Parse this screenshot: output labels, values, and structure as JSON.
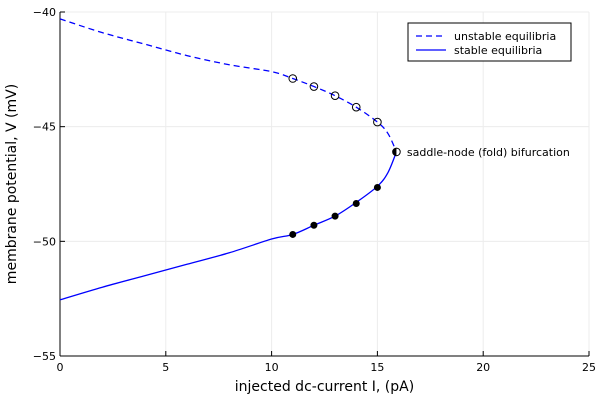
{
  "chart_data": {
    "type": "line",
    "title": "",
    "xlabel": "injected dc-current I, (pA)",
    "ylabel": "membrane potential, V (mV)",
    "xlim": [
      0,
      25
    ],
    "ylim": [
      -55,
      -40
    ],
    "x_ticks": [
      0,
      5,
      10,
      15,
      20,
      25
    ],
    "y_ticks": [
      -55,
      -50,
      -45,
      -40
    ],
    "x_tick_labels": [
      "0",
      "5",
      "10",
      "15",
      "20",
      "25"
    ],
    "y_tick_labels": [
      "−55",
      "−50",
      "−45",
      "−40"
    ],
    "grid": true,
    "legend_position": "top-right",
    "fold": {
      "I": 15.9,
      "V": -46.1
    },
    "series": [
      {
        "name": "unstable equilibria",
        "style": "dashed",
        "color": "#0000ff",
        "x": [
          0,
          2,
          4,
          6,
          8,
          10,
          11,
          12,
          13,
          14,
          15,
          15.5,
          15.9
        ],
        "y": [
          -40.3,
          -40.9,
          -41.4,
          -41.9,
          -42.3,
          -42.6,
          -42.9,
          -43.25,
          -43.65,
          -44.15,
          -44.8,
          -45.3,
          -46.1
        ]
      },
      {
        "name": "stable equilibria",
        "style": "solid",
        "color": "#0000ff",
        "x": [
          15.9,
          15.5,
          15,
          14,
          13,
          12,
          11,
          10,
          8,
          6,
          4,
          2,
          0
        ],
        "y": [
          -46.1,
          -47.0,
          -47.6,
          -48.3,
          -48.9,
          -49.3,
          -49.7,
          -49.9,
          -50.5,
          -51.0,
          -51.5,
          -52.0,
          -52.55
        ]
      }
    ],
    "markers": [
      {
        "I": 11,
        "V": -42.9,
        "filled": false
      },
      {
        "I": 12,
        "V": -43.25,
        "filled": false
      },
      {
        "I": 13,
        "V": -43.65,
        "filled": false
      },
      {
        "I": 14,
        "V": -44.15,
        "filled": false
      },
      {
        "I": 15,
        "V": -44.8,
        "filled": false
      },
      {
        "I": 11,
        "V": -49.7,
        "filled": true
      },
      {
        "I": 12,
        "V": -49.3,
        "filled": true
      },
      {
        "I": 13,
        "V": -48.9,
        "filled": true
      },
      {
        "I": 14,
        "V": -48.35,
        "filled": true
      },
      {
        "I": 15,
        "V": -47.65,
        "filled": true
      },
      {
        "I": 15.9,
        "V": -46.1,
        "filled": "half"
      }
    ],
    "annotations": [
      {
        "text": "saddle-node (fold) bifurcation",
        "I": 16.3,
        "V": -46.1
      }
    ]
  }
}
